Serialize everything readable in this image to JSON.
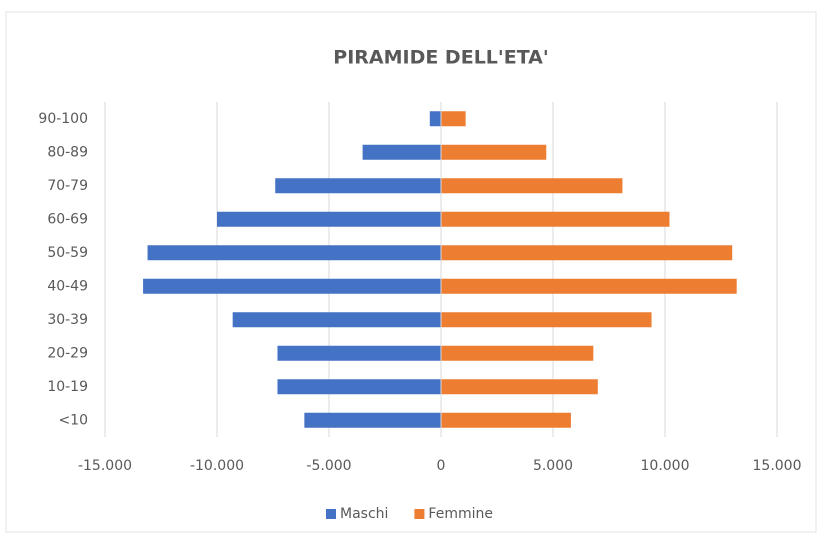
{
  "chart_data": {
    "type": "bar",
    "orientation": "horizontal",
    "title": "PIRAMIDE DELL'ETA'",
    "categories": [
      "<10",
      "10-19",
      "20-29",
      "30-39",
      "40-49",
      "50-59",
      "60-69",
      "70-79",
      "80-89",
      "90-100"
    ],
    "series": [
      {
        "name": "Maschi",
        "color": "#4472c4",
        "values": [
          -6100,
          -7300,
          -7300,
          -9300,
          -13300,
          -13100,
          -10000,
          -7400,
          -3500,
          -500
        ]
      },
      {
        "name": "Femmine",
        "color": "#ed7d31",
        "values": [
          5800,
          7000,
          6800,
          9400,
          13200,
          13000,
          10200,
          8100,
          4700,
          1100
        ]
      }
    ],
    "xlim": [
      -15000,
      15000
    ],
    "xticks": [
      {
        "value": -15000,
        "label": "-15.000"
      },
      {
        "value": -10000,
        "label": "-10.000"
      },
      {
        "value": -5000,
        "label": "-5.000"
      },
      0,
      {
        "value": 5000,
        "label": "5.000"
      },
      {
        "value": 10000,
        "label": "10.000"
      },
      {
        "value": 15000,
        "label": "15.000"
      }
    ],
    "grid": true,
    "legend": "bottom"
  }
}
